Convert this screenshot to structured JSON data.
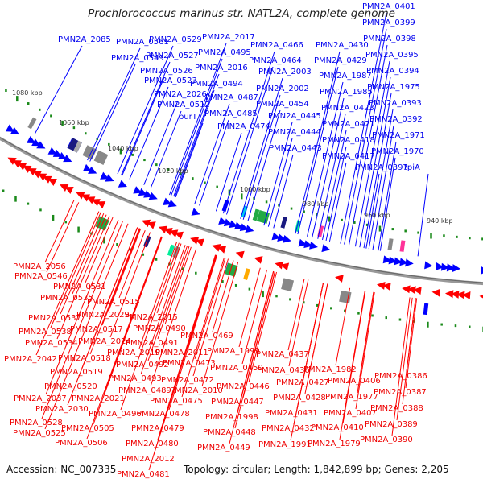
{
  "title": "Prochlorococcus marinus str. NATL2A, complete genome",
  "footer": {
    "accession": "Accession: NC_007335",
    "topology": "Topology: circular; Length: 1,842,899 bp; Genes: 2,205"
  },
  "colors": {
    "forward": "#0000ff",
    "reverse": "#ff0000",
    "backbone": "#888888",
    "gc_ticks": "#1a8a1a"
  },
  "kbp_ticks": [
    "1080 kbp",
    "1060 kbp",
    "1040 kbp",
    "1020 kbp",
    "1000 kbp",
    "980 kbp",
    "960 kbp",
    "940 kbp"
  ],
  "forward_genes": [
    "PMN2A_2085",
    "PMN2A_0561",
    "PMN2A_0549",
    "PMN2A_0529",
    "PMN2A_0527",
    "PMN2A_0526",
    "PMN2A_0523",
    "PMN2A_2026",
    "PMN2A_0512",
    "purT",
    "PMN2A_2017",
    "PMN2A_0495",
    "PMN2A_2016",
    "PMN2A_0494",
    "PMN2A_0487",
    "PMN2A_0485",
    "PMN2A_0474",
    "PMN2A_0466",
    "PMN2A_0464",
    "PMN2A_2003",
    "PMN2A_2002",
    "PMN2A_0454",
    "PMN2A_0445",
    "PMN2A_0444",
    "PMN2A_0443",
    "PMN2A_0430",
    "PMN2A_0429",
    "PMN2A_1987",
    "PMN2A_1985",
    "PMN2A_0423",
    "PMN2A_0421",
    "PMN2A_0418",
    "PMN2A_0417",
    "PMN2A_0401",
    "PMN2A_0399",
    "PMN2A_0398",
    "PMN2A_0395",
    "PMN2A_0394",
    "PMN2A_1975",
    "PMN2A_0393",
    "PMN2A_0392",
    "PMN2A_1971",
    "PMN2A_1970",
    "PMN2A_0397",
    "tpiA"
  ],
  "reverse_genes": [
    "PMN2A_2056",
    "PMN2A_0546",
    "PMN2A_0531",
    "PMN2A_0535",
    "PMN2A_0515",
    "PMN2A_0537",
    "PMN2A_2029",
    "PMN2A_0538",
    "PMN2A_0517",
    "PMN2A_0534",
    "PMN2A_2024",
    "PMN2A_2042",
    "PMN2A_0518",
    "PMN2A_0519",
    "PMN2A_0520",
    "PMN2A_2037",
    "PMN2A_2030",
    "PMN2A_0528",
    "PMN2A_0525",
    "PMN2A_2021",
    "PMN2A_0496",
    "PMN2A_0505",
    "PMN2A_0506",
    "PMN2A_2015",
    "PMN2A_0490",
    "PMN2A_0491",
    "PMN2A_2019",
    "PMN2A_0492",
    "PMN2A_0493",
    "PMN2A_0489",
    "PMN2A_0469",
    "PMN2A_2011",
    "PMN2A_0473",
    "PMN2A_0472",
    "PMN2A_2010",
    "PMN2A_0475",
    "PMN2A_0478",
    "PMN2A_0479",
    "PMN2A_0480",
    "PMN2A_2012",
    "PMN2A_0481",
    "PMN2A_1999",
    "PMN2A_0450",
    "PMN2A_0446",
    "PMN2A_0447",
    "PMN2A_1998",
    "PMN2A_0448",
    "PMN2A_0449",
    "PMN2A_0437",
    "PMN2A_0436",
    "PMN2A_1982",
    "PMN2A_0427",
    "PMN2A_0406",
    "PMN2A_0428",
    "PMN2A_1977",
    "PMN2A_0431",
    "PMN2A_0407",
    "PMN2A_0432",
    "PMN2A_0410",
    "PMN2A_1991",
    "PMN2A_1979",
    "PMN2A_0386",
    "PMN2A_0387",
    "PMN2A_0388",
    "PMN2A_0389",
    "PMN2A_0390"
  ]
}
